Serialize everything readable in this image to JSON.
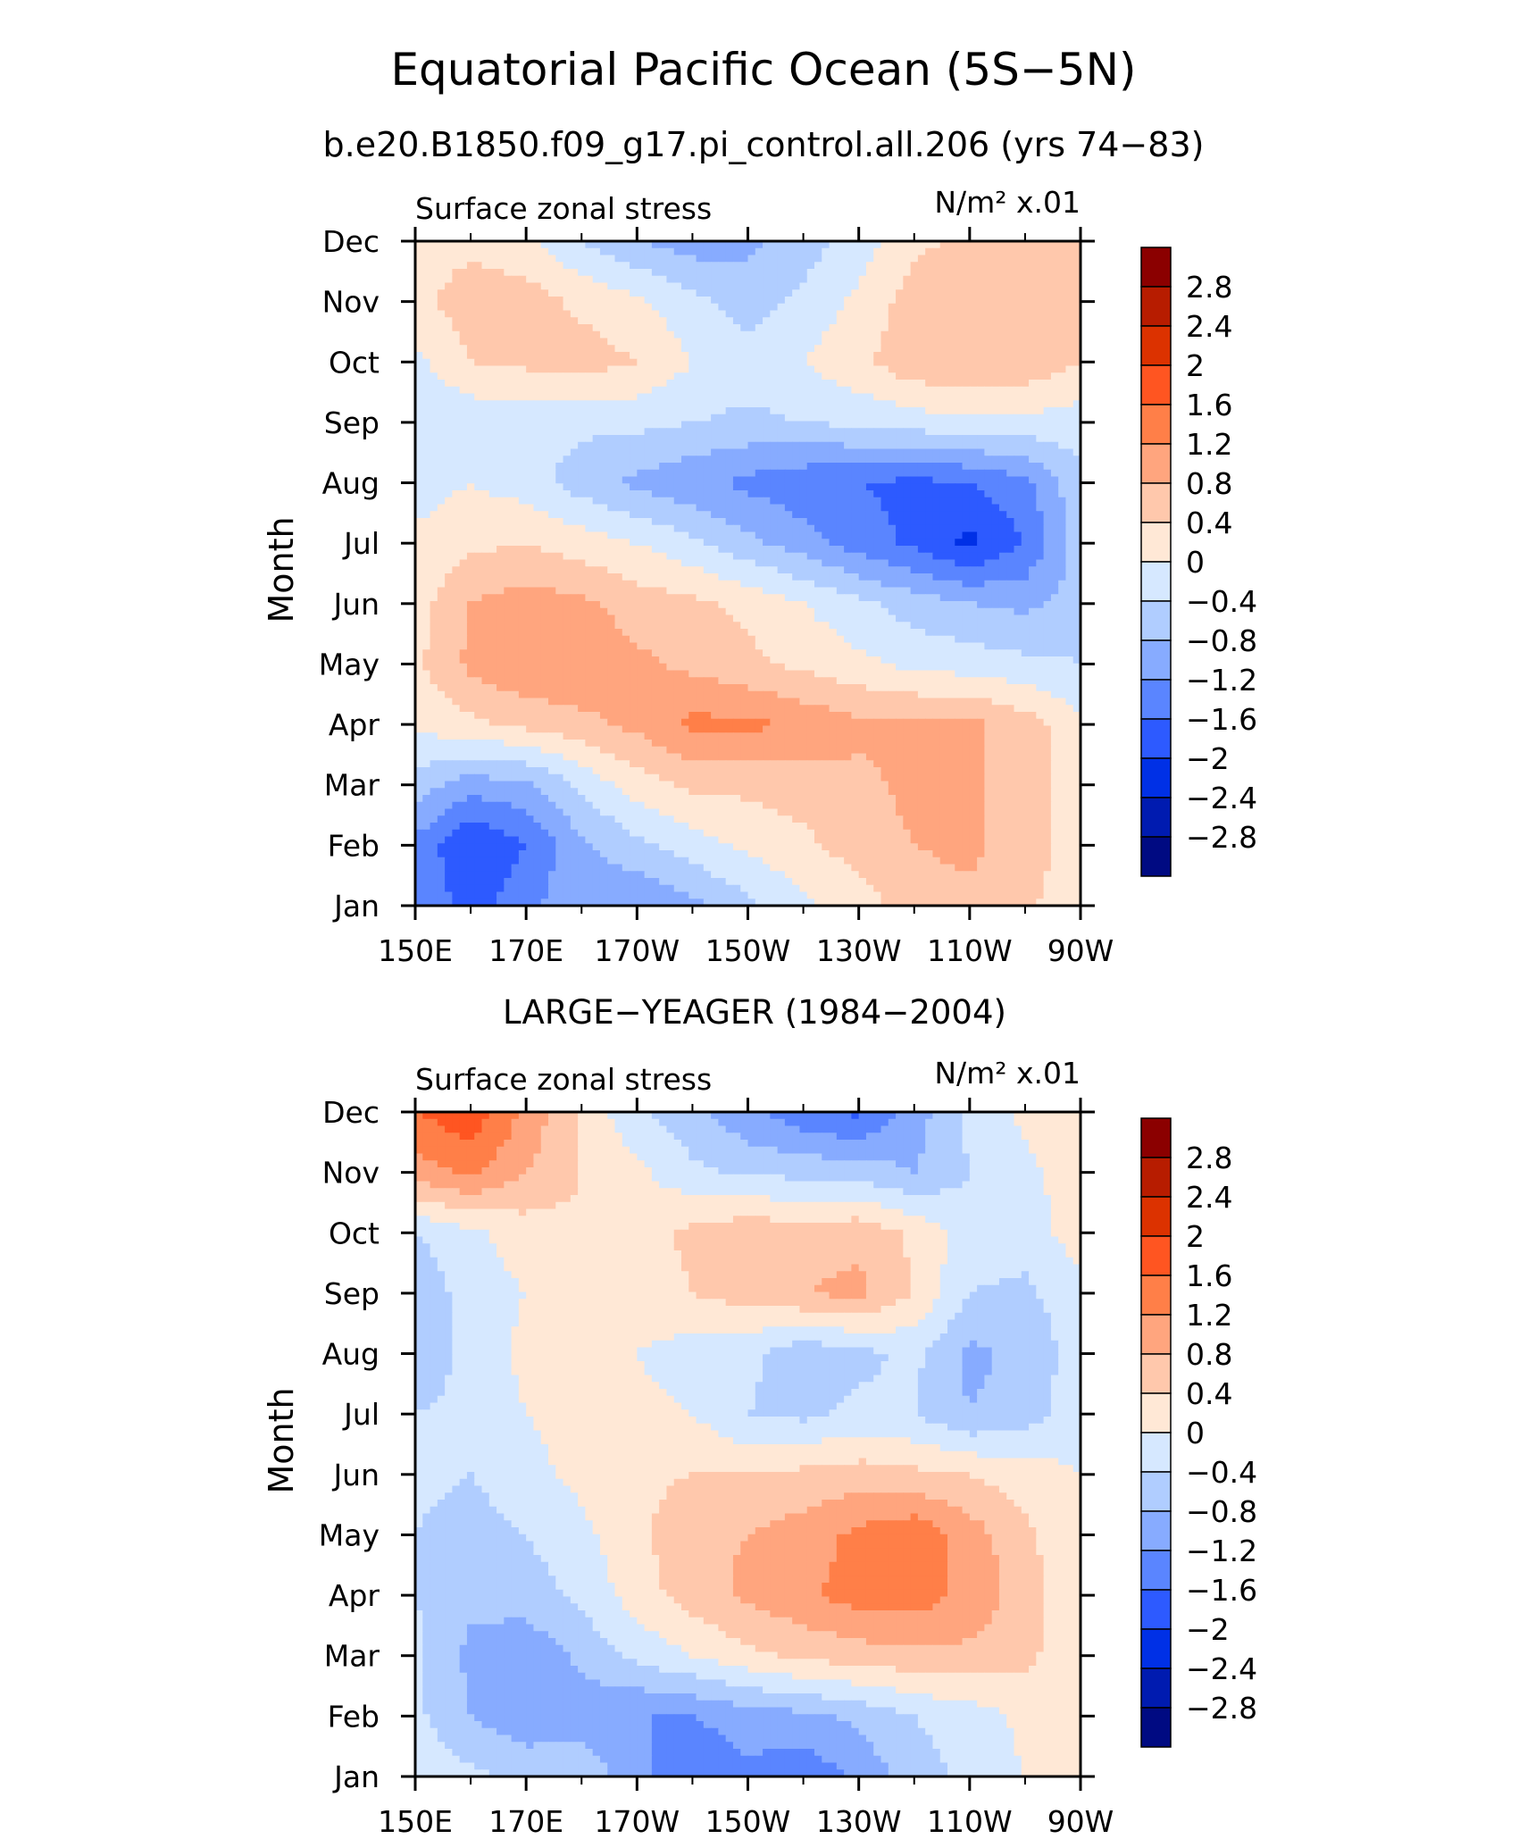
{
  "title": "Equatorial Pacific Ocean (5S−5N)",
  "subtitle": "b.e20.B1850.f09_g17.pi_control.all.206 (yrs 74−83)",
  "colorbar": {
    "labels": [
      "2.8",
      "2.4",
      "2",
      "1.6",
      "1.2",
      "0.8",
      "0.4",
      "0",
      "−0.4",
      "−0.8",
      "−1.2",
      "−1.6",
      "−2",
      "−2.4",
      "−2.8"
    ],
    "colors": [
      "#8b0000",
      "#b71c00",
      "#dc3200",
      "#ff5521",
      "#ff7f48",
      "#ffa57e",
      "#ffc8ac",
      "#ffe8d6",
      "#d6e8ff",
      "#b0cdff",
      "#87abff",
      "#5a85ff",
      "#2d5aff",
      "#0030e6",
      "#001bb0",
      "#000a82"
    ]
  },
  "chart_data": [
    {
      "type": "heatmap",
      "panel_title": "",
      "title": "Surface zonal stress",
      "units": "N/m² x.01",
      "ylabel": "Month",
      "xlabel": "",
      "x_labels": [
        "150E",
        "170E",
        "170W",
        "150W",
        "130W",
        "110W",
        "90W"
      ],
      "y_labels": [
        "Jan",
        "Feb",
        "Mar",
        "Apr",
        "May",
        "Jun",
        "Jul",
        "Aug",
        "Sep",
        "Oct",
        "Nov",
        "Dec"
      ],
      "x_range": [
        "150E",
        "90W"
      ],
      "levels": [
        -2.8,
        -2.4,
        -2.0,
        -1.6,
        -1.2,
        -0.8,
        -0.4,
        0,
        0.4,
        0.8,
        1.2,
        1.6,
        2.0,
        2.4,
        2.8
      ],
      "grid_lon": [
        "150E",
        "160E",
        "170E",
        "180",
        "170W",
        "160W",
        "150W",
        "140W",
        "130W",
        "120W",
        "110W",
        "100W",
        "90W"
      ],
      "values": [
        [
          -1.2,
          -1.8,
          -1.3,
          -0.9,
          -1.2,
          -0.9,
          -0.5,
          -0.1,
          0.2,
          0.6,
          0.7,
          0.5,
          0.1
        ],
        [
          -1.3,
          -2.0,
          -1.6,
          -0.9,
          -0.5,
          -0.2,
          0.1,
          0.3,
          0.6,
          0.8,
          0.9,
          0.6,
          0.2
        ],
        [
          -0.6,
          -1.0,
          -0.9,
          -0.3,
          0.2,
          0.5,
          0.5,
          0.6,
          0.7,
          0.9,
          0.9,
          0.6,
          0.2
        ],
        [
          0.1,
          0.3,
          0.5,
          0.7,
          0.9,
          1.3,
          1.3,
          1.1,
          0.9,
          0.9,
          0.9,
          0.6,
          0.1
        ],
        [
          0.3,
          0.9,
          1.2,
          1.1,
          0.9,
          0.7,
          0.5,
          0.3,
          0.1,
          -0.1,
          -0.2,
          -0.3,
          -0.4
        ],
        [
          0.2,
          0.8,
          1.0,
          0.9,
          0.6,
          0.5,
          0.3,
          0.0,
          -0.3,
          -0.6,
          -0.8,
          -0.9,
          -0.6
        ],
        [
          0.1,
          0.3,
          0.4,
          0.2,
          0.0,
          -0.3,
          -0.7,
          -1.0,
          -1.4,
          -1.7,
          -2.1,
          -1.6,
          -0.6
        ],
        [
          -0.2,
          0.0,
          -0.2,
          -0.6,
          -0.9,
          -1.1,
          -1.3,
          -1.5,
          -1.6,
          -1.7,
          -1.6,
          -1.3,
          -0.5
        ],
        [
          -0.4,
          -0.3,
          -0.3,
          -0.3,
          -0.3,
          -0.4,
          -0.5,
          -0.4,
          -0.3,
          -0.2,
          -0.1,
          -0.1,
          -0.2
        ],
        [
          -0.1,
          0.4,
          0.5,
          0.6,
          0.4,
          0.0,
          -0.2,
          0.0,
          0.3,
          0.7,
          0.8,
          0.7,
          0.4
        ],
        [
          0.3,
          0.6,
          0.6,
          0.3,
          0.1,
          -0.3,
          -0.6,
          -0.3,
          0.1,
          0.6,
          0.8,
          0.8,
          0.6
        ],
        [
          0.2,
          0.3,
          0.1,
          -0.4,
          -0.8,
          -1.0,
          -0.9,
          -0.6,
          -0.2,
          0.3,
          0.5,
          0.5,
          0.4
        ]
      ]
    },
    {
      "type": "heatmap",
      "panel_title": "LARGE−YEAGER (1984−2004)",
      "title": "Surface zonal stress",
      "units": "N/m² x.01",
      "ylabel": "Month",
      "xlabel": "",
      "x_labels": [
        "150E",
        "170E",
        "170W",
        "150W",
        "130W",
        "110W",
        "90W"
      ],
      "y_labels": [
        "Jan",
        "Feb",
        "Mar",
        "Apr",
        "May",
        "Jun",
        "Jul",
        "Aug",
        "Sep",
        "Oct",
        "Nov",
        "Dec"
      ],
      "x_range": [
        "150E",
        "90W"
      ],
      "levels": [
        -2.8,
        -2.4,
        -2.0,
        -1.6,
        -1.2,
        -0.8,
        -0.4,
        0,
        0.4,
        0.8,
        1.2,
        1.6,
        2.0,
        2.4,
        2.8
      ],
      "grid_lon": [
        "150E",
        "160E",
        "170E",
        "180",
        "170W",
        "160W",
        "150W",
        "140W",
        "130W",
        "120W",
        "110W",
        "100W",
        "90W"
      ],
      "values": [
        [
          -0.1,
          -0.3,
          -0.5,
          -0.5,
          -1.1,
          -1.6,
          -1.3,
          -1.5,
          -1.1,
          -0.6,
          -0.3,
          0.0,
          0.1
        ],
        [
          -0.3,
          -0.8,
          -1.1,
          -1.0,
          -1.2,
          -1.2,
          -1.0,
          -0.9,
          -0.7,
          -0.4,
          -0.2,
          0.1,
          0.1
        ],
        [
          -0.3,
          -0.9,
          -1.1,
          -0.7,
          -0.3,
          0.0,
          0.3,
          0.5,
          0.6,
          0.7,
          0.7,
          0.5,
          0.1
        ],
        [
          -0.4,
          -0.7,
          -0.6,
          -0.3,
          0.2,
          0.6,
          0.9,
          1.1,
          1.4,
          1.4,
          1.1,
          0.6,
          0.1
        ],
        [
          -0.4,
          -0.6,
          -0.4,
          -0.1,
          0.3,
          0.7,
          0.8,
          1.0,
          1.3,
          1.5,
          1.0,
          0.5,
          0.0
        ],
        [
          -0.3,
          -0.4,
          -0.1,
          0.1,
          0.3,
          0.4,
          0.4,
          0.5,
          0.6,
          0.5,
          0.4,
          0.2,
          0.0
        ],
        [
          -0.4,
          -0.3,
          0.0,
          0.1,
          0.1,
          0.0,
          -0.4,
          -0.5,
          -0.3,
          -0.4,
          -0.8,
          -0.6,
          -0.1
        ],
        [
          -0.8,
          -0.2,
          0.1,
          0.1,
          0.0,
          -0.2,
          -0.3,
          -0.7,
          -0.5,
          -0.3,
          -0.9,
          -0.7,
          -0.2
        ],
        [
          -0.7,
          -0.2,
          0.0,
          0.2,
          0.2,
          0.4,
          0.6,
          0.8,
          0.9,
          0.4,
          -0.4,
          -0.5,
          -0.1
        ],
        [
          -0.4,
          -0.1,
          0.2,
          0.3,
          0.2,
          0.5,
          0.7,
          0.6,
          0.7,
          0.3,
          -0.2,
          -0.2,
          0.2
        ],
        [
          1.0,
          1.3,
          0.8,
          0.4,
          0.1,
          -0.3,
          -0.5,
          -0.5,
          -0.6,
          -0.8,
          -0.4,
          -0.1,
          0.2
        ],
        [
          1.6,
          1.9,
          1.1,
          0.3,
          -0.3,
          -0.7,
          -1.1,
          -1.5,
          -1.7,
          -1.0,
          -0.3,
          0.1,
          0.2
        ]
      ]
    }
  ]
}
